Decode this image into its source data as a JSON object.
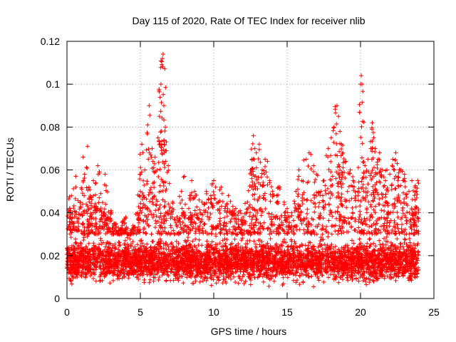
{
  "chart_data": {
    "type": "scatter",
    "title": "Day 115 of 2020, Rate Of TEC Index for receiver nlib",
    "xlabel": "GPS time / hours",
    "ylabel": "ROTI / TECUs",
    "xlim": [
      0,
      25
    ],
    "ylim": [
      0,
      0.12
    ],
    "xticks": [
      0,
      5,
      10,
      15,
      20,
      25
    ],
    "xtick_labels": [
      "0",
      "5",
      "10",
      "15",
      "20",
      "25"
    ],
    "yticks": [
      0,
      0.02,
      0.04,
      0.06,
      0.08,
      0.1,
      0.12
    ],
    "ytick_labels": [
      "0",
      "0.02",
      "0.04",
      "0.06",
      "0.08",
      "0.1",
      "0.12"
    ],
    "grid": true,
    "marker": "+",
    "series_color": "#ff0000",
    "series": [
      {
        "name": "ROTI",
        "description": "dense per-satellite ROTI samples across the day",
        "baseline_band": [
          0.005,
          0.03
        ],
        "x": [
          0.2,
          0.3,
          0.5,
          0.6,
          0.9,
          1.1,
          1.2,
          1.4,
          1.5,
          1.6,
          1.8,
          2.0,
          2.1,
          2.3,
          2.5,
          2.6,
          2.8,
          3.0,
          3.2,
          3.5,
          3.8,
          4.0,
          4.2,
          4.5,
          4.8,
          5.0,
          5.1,
          5.3,
          5.5,
          5.6,
          5.8,
          6.0,
          6.2,
          6.3,
          6.4,
          6.5,
          6.55,
          6.6,
          6.7,
          6.9,
          7.2,
          7.5,
          7.8,
          8.0,
          8.3,
          8.5,
          8.7,
          9.0,
          9.2,
          9.5,
          9.8,
          10.0,
          10.3,
          10.5,
          10.8,
          11.0,
          11.3,
          11.5,
          11.8,
          12.0,
          12.3,
          12.5,
          12.6,
          12.7,
          12.8,
          12.9,
          13.1,
          13.3,
          13.5,
          13.8,
          14.0,
          14.3,
          14.5,
          14.8,
          15.0,
          15.3,
          15.6,
          15.8,
          16.0,
          16.3,
          16.5,
          16.8,
          17.0,
          17.3,
          17.5,
          17.8,
          18.0,
          18.2,
          18.4,
          18.5,
          18.6,
          18.7,
          18.8,
          19.0,
          19.3,
          19.5,
          19.8,
          20.0,
          20.05,
          20.1,
          20.3,
          20.5,
          20.7,
          20.8,
          20.9,
          21.0,
          21.2,
          21.3,
          21.5,
          21.7,
          21.8,
          22.0,
          22.2,
          22.4,
          22.5,
          22.7,
          22.9,
          23.0,
          23.3,
          23.5,
          23.7,
          23.8,
          23.9
        ],
        "y": [
          0.042,
          0.048,
          0.038,
          0.057,
          0.045,
          0.066,
          0.058,
          0.071,
          0.052,
          0.047,
          0.055,
          0.043,
          0.062,
          0.049,
          0.04,
          0.058,
          0.038,
          0.041,
          0.035,
          0.033,
          0.036,
          0.038,
          0.03,
          0.034,
          0.04,
          0.05,
          0.072,
          0.06,
          0.081,
          0.09,
          0.07,
          0.066,
          0.075,
          0.085,
          0.1,
          0.112,
          0.114,
          0.09,
          0.08,
          0.062,
          0.045,
          0.038,
          0.05,
          0.057,
          0.042,
          0.055,
          0.05,
          0.046,
          0.045,
          0.05,
          0.048,
          0.055,
          0.045,
          0.052,
          0.043,
          0.048,
          0.043,
          0.042,
          0.041,
          0.038,
          0.045,
          0.06,
          0.065,
          0.076,
          0.07,
          0.068,
          0.072,
          0.06,
          0.065,
          0.055,
          0.05,
          0.048,
          0.052,
          0.045,
          0.042,
          0.04,
          0.05,
          0.06,
          0.055,
          0.065,
          0.068,
          0.062,
          0.058,
          0.05,
          0.055,
          0.07,
          0.075,
          0.08,
          0.09,
          0.085,
          0.078,
          0.072,
          0.068,
          0.064,
          0.06,
          0.055,
          0.05,
          0.1,
          0.104,
          0.1,
          0.062,
          0.065,
          0.07,
          0.082,
          0.075,
          0.07,
          0.065,
          0.068,
          0.06,
          0.055,
          0.06,
          0.058,
          0.065,
          0.068,
          0.063,
          0.06,
          0.055,
          0.058,
          0.05,
          0.055,
          0.052,
          0.05,
          0.055
        ]
      }
    ]
  }
}
